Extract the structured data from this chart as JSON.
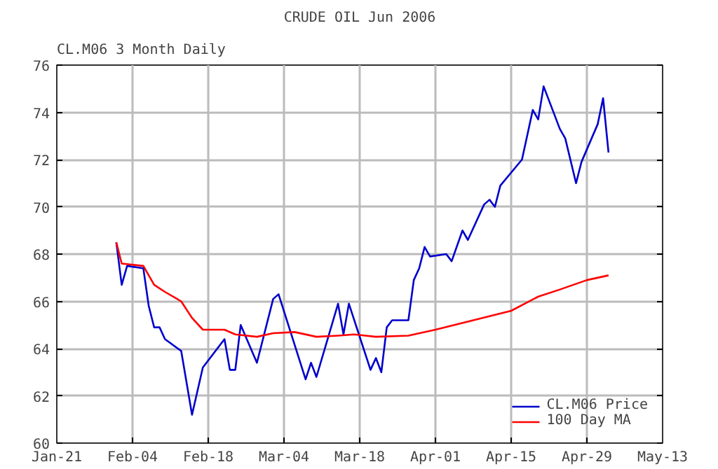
{
  "chart_data": {
    "type": "line",
    "title": "CRUDE OIL Jun 2006",
    "annotations": [
      "CL.M06 3 Month Daily"
    ],
    "xlim": [
      "2006-01-21",
      "2006-05-13"
    ],
    "xticks": [
      {
        "value": "2006-01-21",
        "label": "Jan-21"
      },
      {
        "value": "2006-02-04",
        "label": "Feb-04"
      },
      {
        "value": "2006-02-18",
        "label": "Feb-18"
      },
      {
        "value": "2006-03-04",
        "label": "Mar-04"
      },
      {
        "value": "2006-03-18",
        "label": "Mar-18"
      },
      {
        "value": "2006-04-01",
        "label": "Apr-01"
      },
      {
        "value": "2006-04-15",
        "label": "Apr-15"
      },
      {
        "value": "2006-04-29",
        "label": "Apr-29"
      },
      {
        "value": "2006-05-13",
        "label": "May-13"
      }
    ],
    "ylim": [
      60,
      76
    ],
    "yticks": [
      60,
      62,
      64,
      66,
      68,
      70,
      72,
      74,
      76
    ],
    "grid": true,
    "legend": "bottom right",
    "marker": "none",
    "line_style": "solid",
    "series": [
      {
        "name": "CL.M06 Price",
        "color": "#0000cc",
        "x": [
          "2006-02-01",
          "2006-02-02",
          "2006-02-03",
          "2006-02-06",
          "2006-02-07",
          "2006-02-08",
          "2006-02-09",
          "2006-02-10",
          "2006-02-13",
          "2006-02-15",
          "2006-02-17",
          "2006-02-21",
          "2006-02-22",
          "2006-02-23",
          "2006-02-24",
          "2006-02-27",
          "2006-03-02",
          "2006-03-03",
          "2006-03-08",
          "2006-03-09",
          "2006-03-10",
          "2006-03-14",
          "2006-03-15",
          "2006-03-16",
          "2006-03-20",
          "2006-03-21",
          "2006-03-22",
          "2006-03-23",
          "2006-03-24",
          "2006-03-27",
          "2006-03-28",
          "2006-03-29",
          "2006-03-30",
          "2006-03-31",
          "2006-04-03",
          "2006-04-04",
          "2006-04-06",
          "2006-04-07",
          "2006-04-10",
          "2006-04-11",
          "2006-04-12",
          "2006-04-13",
          "2006-04-17",
          "2006-04-19",
          "2006-04-20",
          "2006-04-21",
          "2006-04-24",
          "2006-04-25",
          "2006-04-27",
          "2006-04-28",
          "2006-05-01",
          "2006-05-02",
          "2006-05-03"
        ],
        "values": [
          68.5,
          66.7,
          67.5,
          67.4,
          65.8,
          64.9,
          64.9,
          64.4,
          63.9,
          61.2,
          63.2,
          64.4,
          63.1,
          63.1,
          65.0,
          63.4,
          66.1,
          66.3,
          62.7,
          63.4,
          62.8,
          65.9,
          64.6,
          65.9,
          63.1,
          63.6,
          63.0,
          64.9,
          65.2,
          65.2,
          66.9,
          67.4,
          68.3,
          67.9,
          68.0,
          67.7,
          69.0,
          68.6,
          70.1,
          70.3,
          70.0,
          70.9,
          72.0,
          74.1,
          73.7,
          75.1,
          73.3,
          72.9,
          71.0,
          71.9,
          73.5,
          74.6,
          72.3
        ]
      },
      {
        "name": "100 Day MA",
        "color": "#ff0000",
        "x": [
          "2006-02-01",
          "2006-02-02",
          "2006-02-06",
          "2006-02-08",
          "2006-02-10",
          "2006-02-13",
          "2006-02-15",
          "2006-02-17",
          "2006-02-21",
          "2006-02-23",
          "2006-02-27",
          "2006-03-02",
          "2006-03-06",
          "2006-03-10",
          "2006-03-14",
          "2006-03-17",
          "2006-03-21",
          "2006-03-27",
          "2006-04-01",
          "2006-04-08",
          "2006-04-15",
          "2006-04-20",
          "2006-04-24",
          "2006-04-29",
          "2006-05-03"
        ],
        "values": [
          68.5,
          67.6,
          67.5,
          66.7,
          66.4,
          66.0,
          65.3,
          64.8,
          64.8,
          64.6,
          64.5,
          64.65,
          64.7,
          64.5,
          64.55,
          64.6,
          64.5,
          64.55,
          64.8,
          65.2,
          65.6,
          66.2,
          66.5,
          66.9,
          67.1
        ]
      }
    ]
  }
}
